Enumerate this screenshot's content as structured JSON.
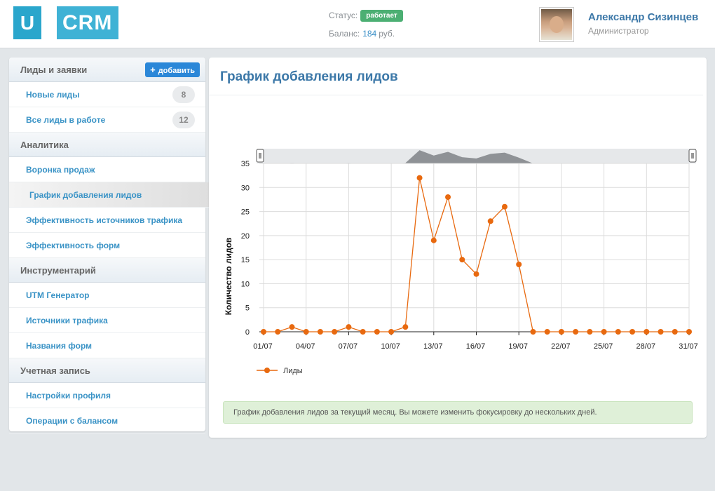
{
  "app": {
    "logo_u": "U",
    "logo_crm": "CRM"
  },
  "header": {
    "status_label": "Статус:",
    "status_value": "работает",
    "balance_label": "Баланс:",
    "balance_value": "184",
    "balance_currency": "руб.",
    "user_name": "Александр Сизинцев",
    "user_role": "Администратор"
  },
  "sidebar": {
    "sections": [
      {
        "title": "Лиды и заявки",
        "add_label": "добавить",
        "items": [
          {
            "label": "Новые лиды",
            "count": "8"
          },
          {
            "label": "Все лиды в работе",
            "count": "12"
          }
        ]
      },
      {
        "title": "Аналитика",
        "items": [
          {
            "label": "Воронка продаж"
          },
          {
            "label": "График добавления лидов",
            "active": true
          },
          {
            "label": "Эффективность источников трафика"
          },
          {
            "label": "Эффективность форм"
          }
        ]
      },
      {
        "title": "Инструментарий",
        "items": [
          {
            "label": "UTM Генератор"
          },
          {
            "label": "Источники трафика"
          },
          {
            "label": "Названия форм"
          }
        ]
      },
      {
        "title": "Учетная запись",
        "items": [
          {
            "label": "Настройки профиля"
          },
          {
            "label": "Операции с балансом"
          }
        ]
      }
    ]
  },
  "main": {
    "title": "График добавления лидов",
    "info": "График добавления лидов за текущий месяц. Вы можете изменить фокусировку до нескольких дней."
  },
  "chart_data": {
    "type": "line",
    "title": "",
    "xlabel": "",
    "ylabel": "Количество лидов",
    "x": [
      "01/07",
      "02/07",
      "03/07",
      "04/07",
      "05/07",
      "06/07",
      "07/07",
      "08/07",
      "09/07",
      "10/07",
      "11/07",
      "12/07",
      "13/07",
      "14/07",
      "15/07",
      "16/07",
      "17/07",
      "18/07",
      "19/07",
      "20/07",
      "21/07",
      "22/07",
      "23/07",
      "24/07",
      "25/07",
      "26/07",
      "27/07",
      "28/07",
      "29/07",
      "30/07",
      "31/07"
    ],
    "xticks": [
      "01/07",
      "04/07",
      "07/07",
      "10/07",
      "13/07",
      "16/07",
      "19/07",
      "22/07",
      "25/07",
      "28/07",
      "31/07"
    ],
    "ylim": [
      0,
      35
    ],
    "yticks": [
      0,
      5,
      10,
      15,
      20,
      25,
      30,
      35
    ],
    "grid": true,
    "legend": "bottom-left",
    "series": [
      {
        "name": "Лиды",
        "color": "#e8690f",
        "values": [
          0,
          0,
          1,
          0,
          0,
          0,
          1,
          0,
          0,
          0,
          1,
          32,
          19,
          28,
          15,
          12,
          23,
          26,
          14,
          0,
          0,
          0,
          0,
          0,
          0,
          0,
          0,
          0,
          0,
          0,
          0
        ]
      }
    ]
  }
}
